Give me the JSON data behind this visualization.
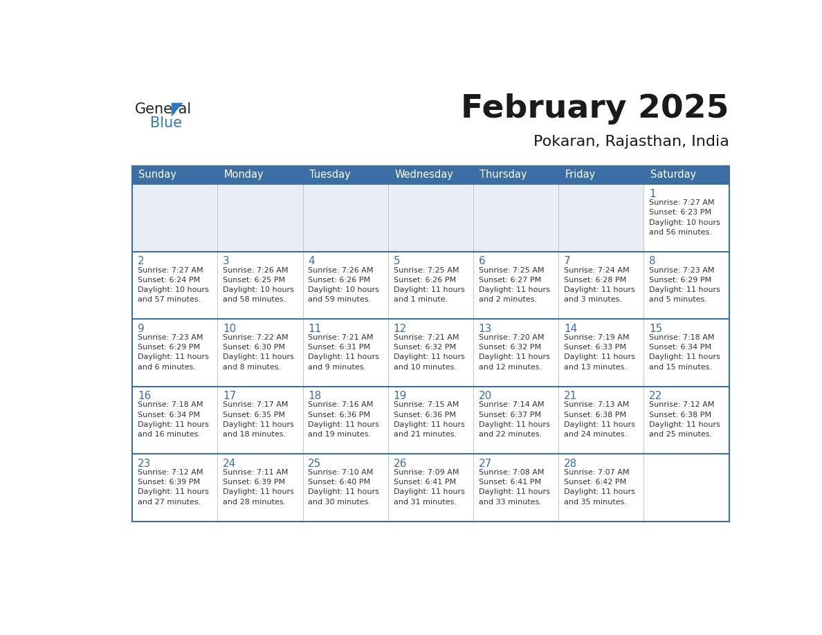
{
  "title": "February 2025",
  "subtitle": "Pokaran, Rajasthan, India",
  "header_bg_color": "#3a6ea5",
  "header_text_color": "#ffffff",
  "cell_bg_color": "#ffffff",
  "cell_empty_bg_color": "#e8eef4",
  "grid_line_color": "#3a6ea5",
  "inner_line_color": "#cccccc",
  "days_of_week": [
    "Sunday",
    "Monday",
    "Tuesday",
    "Wednesday",
    "Thursday",
    "Friday",
    "Saturday"
  ],
  "title_color": "#1a1a1a",
  "subtitle_color": "#1a1a1a",
  "day_num_color": "#3a6ea5",
  "info_text_color": "#333333",
  "logo_general_color": "#222222",
  "logo_blue_color": "#2b7bc0",
  "triangle_color": "#2b7bc0",
  "calendar_data": [
    [
      null,
      null,
      null,
      null,
      null,
      null,
      {
        "day": 1,
        "sunrise": "7:27 AM",
        "sunset": "6:23 PM",
        "daylight_line1": "Daylight: 10 hours",
        "daylight_line2": "and 56 minutes."
      }
    ],
    [
      {
        "day": 2,
        "sunrise": "7:27 AM",
        "sunset": "6:24 PM",
        "daylight_line1": "Daylight: 10 hours",
        "daylight_line2": "and 57 minutes."
      },
      {
        "day": 3,
        "sunrise": "7:26 AM",
        "sunset": "6:25 PM",
        "daylight_line1": "Daylight: 10 hours",
        "daylight_line2": "and 58 minutes."
      },
      {
        "day": 4,
        "sunrise": "7:26 AM",
        "sunset": "6:26 PM",
        "daylight_line1": "Daylight: 10 hours",
        "daylight_line2": "and 59 minutes."
      },
      {
        "day": 5,
        "sunrise": "7:25 AM",
        "sunset": "6:26 PM",
        "daylight_line1": "Daylight: 11 hours",
        "daylight_line2": "and 1 minute."
      },
      {
        "day": 6,
        "sunrise": "7:25 AM",
        "sunset": "6:27 PM",
        "daylight_line1": "Daylight: 11 hours",
        "daylight_line2": "and 2 minutes."
      },
      {
        "day": 7,
        "sunrise": "7:24 AM",
        "sunset": "6:28 PM",
        "daylight_line1": "Daylight: 11 hours",
        "daylight_line2": "and 3 minutes."
      },
      {
        "day": 8,
        "sunrise": "7:23 AM",
        "sunset": "6:29 PM",
        "daylight_line1": "Daylight: 11 hours",
        "daylight_line2": "and 5 minutes."
      }
    ],
    [
      {
        "day": 9,
        "sunrise": "7:23 AM",
        "sunset": "6:29 PM",
        "daylight_line1": "Daylight: 11 hours",
        "daylight_line2": "and 6 minutes."
      },
      {
        "day": 10,
        "sunrise": "7:22 AM",
        "sunset": "6:30 PM",
        "daylight_line1": "Daylight: 11 hours",
        "daylight_line2": "and 8 minutes."
      },
      {
        "day": 11,
        "sunrise": "7:21 AM",
        "sunset": "6:31 PM",
        "daylight_line1": "Daylight: 11 hours",
        "daylight_line2": "and 9 minutes."
      },
      {
        "day": 12,
        "sunrise": "7:21 AM",
        "sunset": "6:32 PM",
        "daylight_line1": "Daylight: 11 hours",
        "daylight_line2": "and 10 minutes."
      },
      {
        "day": 13,
        "sunrise": "7:20 AM",
        "sunset": "6:32 PM",
        "daylight_line1": "Daylight: 11 hours",
        "daylight_line2": "and 12 minutes."
      },
      {
        "day": 14,
        "sunrise": "7:19 AM",
        "sunset": "6:33 PM",
        "daylight_line1": "Daylight: 11 hours",
        "daylight_line2": "and 13 minutes."
      },
      {
        "day": 15,
        "sunrise": "7:18 AM",
        "sunset": "6:34 PM",
        "daylight_line1": "Daylight: 11 hours",
        "daylight_line2": "and 15 minutes."
      }
    ],
    [
      {
        "day": 16,
        "sunrise": "7:18 AM",
        "sunset": "6:34 PM",
        "daylight_line1": "Daylight: 11 hours",
        "daylight_line2": "and 16 minutes."
      },
      {
        "day": 17,
        "sunrise": "7:17 AM",
        "sunset": "6:35 PM",
        "daylight_line1": "Daylight: 11 hours",
        "daylight_line2": "and 18 minutes."
      },
      {
        "day": 18,
        "sunrise": "7:16 AM",
        "sunset": "6:36 PM",
        "daylight_line1": "Daylight: 11 hours",
        "daylight_line2": "and 19 minutes."
      },
      {
        "day": 19,
        "sunrise": "7:15 AM",
        "sunset": "6:36 PM",
        "daylight_line1": "Daylight: 11 hours",
        "daylight_line2": "and 21 minutes."
      },
      {
        "day": 20,
        "sunrise": "7:14 AM",
        "sunset": "6:37 PM",
        "daylight_line1": "Daylight: 11 hours",
        "daylight_line2": "and 22 minutes."
      },
      {
        "day": 21,
        "sunrise": "7:13 AM",
        "sunset": "6:38 PM",
        "daylight_line1": "Daylight: 11 hours",
        "daylight_line2": "and 24 minutes."
      },
      {
        "day": 22,
        "sunrise": "7:12 AM",
        "sunset": "6:38 PM",
        "daylight_line1": "Daylight: 11 hours",
        "daylight_line2": "and 25 minutes."
      }
    ],
    [
      {
        "day": 23,
        "sunrise": "7:12 AM",
        "sunset": "6:39 PM",
        "daylight_line1": "Daylight: 11 hours",
        "daylight_line2": "and 27 minutes."
      },
      {
        "day": 24,
        "sunrise": "7:11 AM",
        "sunset": "6:39 PM",
        "daylight_line1": "Daylight: 11 hours",
        "daylight_line2": "and 28 minutes."
      },
      {
        "day": 25,
        "sunrise": "7:10 AM",
        "sunset": "6:40 PM",
        "daylight_line1": "Daylight: 11 hours",
        "daylight_line2": "and 30 minutes."
      },
      {
        "day": 26,
        "sunrise": "7:09 AM",
        "sunset": "6:41 PM",
        "daylight_line1": "Daylight: 11 hours",
        "daylight_line2": "and 31 minutes."
      },
      {
        "day": 27,
        "sunrise": "7:08 AM",
        "sunset": "6:41 PM",
        "daylight_line1": "Daylight: 11 hours",
        "daylight_line2": "and 33 minutes."
      },
      {
        "day": 28,
        "sunrise": "7:07 AM",
        "sunset": "6:42 PM",
        "daylight_line1": "Daylight: 11 hours",
        "daylight_line2": "and 35 minutes."
      },
      null
    ]
  ]
}
